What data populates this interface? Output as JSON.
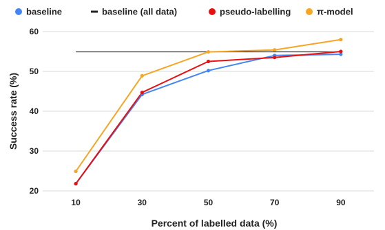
{
  "chart_data": {
    "type": "line",
    "xlabel": "Percent of labelled data (%)",
    "ylabel": "Success rate (%)",
    "x": [
      10,
      30,
      50,
      70,
      90
    ],
    "x_tick_labels": [
      "10",
      "30",
      "50",
      "70",
      "90"
    ],
    "ylim": [
      20,
      60
    ],
    "y_ticks": [
      20,
      30,
      40,
      50,
      60
    ],
    "y_tick_labels": [
      "20",
      "30",
      "40",
      "50",
      "60"
    ],
    "grid": "horizontal",
    "legend_position": "top",
    "series": [
      {
        "name": "baseline",
        "color": "#4285f4",
        "marker": "circle",
        "values": [
          21.8,
          44.2,
          50.2,
          54.0,
          54.3
        ]
      },
      {
        "name": "baseline (all data)",
        "color": "#222222",
        "marker": "dash",
        "constant": 54.9,
        "x_range": [
          10,
          90
        ]
      },
      {
        "name": "pseudo-labelling",
        "color": "#ea0f0f",
        "marker": "circle",
        "values": [
          21.8,
          44.7,
          52.5,
          53.5,
          55.0
        ]
      },
      {
        "name": "π-model",
        "color": "#f5a623",
        "marker": "circle",
        "values": [
          24.9,
          48.9,
          54.9,
          55.4,
          58.0
        ]
      }
    ]
  }
}
